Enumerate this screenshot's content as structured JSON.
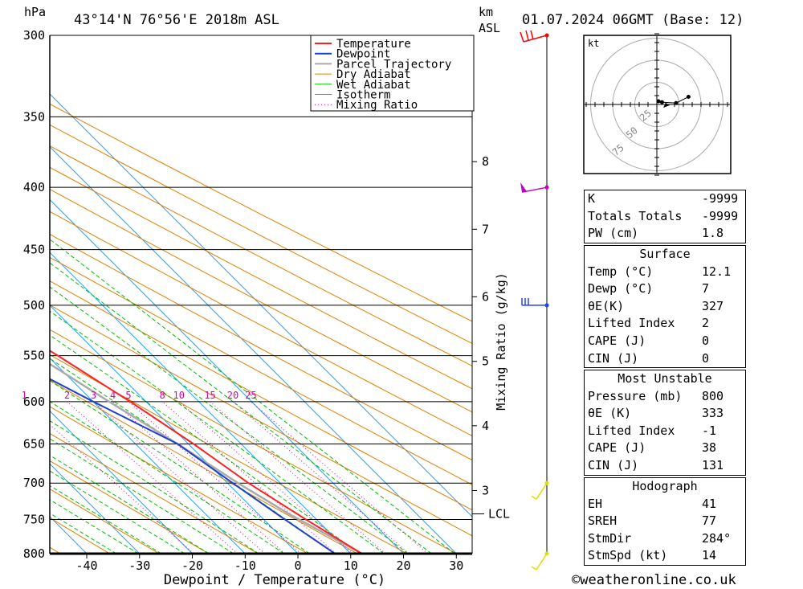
{
  "header": {
    "p_unit": "hPa",
    "location": "43°14'N  76°56'E  2018m  ASL",
    "km_label": "km",
    "asl_label": "ASL",
    "datetime": "01.07.2024  06GMT  (Base: 12)"
  },
  "footer": {
    "credit": "©weatheronline.co.uk"
  },
  "colors": {
    "temperature": "#ff2020",
    "dewpoint": "#2040d0",
    "parcel": "#aaaaaa",
    "dry_adiabat": "#e08000",
    "wet_adiabat": "#00c000",
    "isotherm": "#20a0ff",
    "mixing_ratio": "#e000a0",
    "wind": "#c000c0"
  },
  "chart_data": {
    "type": "skew-t",
    "xlabel": "Dewpoint / Temperature (°C)",
    "ylabel": "",
    "mixing_ratio_axis_label": "Mixing Ratio (g/kg)",
    "xlim": [
      -47,
      33
    ],
    "ylim": [
      800,
      300
    ],
    "x_ticks": [
      -40,
      -30,
      -20,
      -10,
      0,
      10,
      20,
      30
    ],
    "pressure_levels": [
      300,
      350,
      400,
      450,
      500,
      550,
      600,
      650,
      700,
      750,
      800
    ],
    "km_ticks": [
      {
        "km": 8,
        "p": 381
      },
      {
        "km": 7,
        "p": 433
      },
      {
        "km": 6,
        "p": 492
      },
      {
        "km": 5,
        "p": 556
      },
      {
        "km": 4,
        "p": 628
      },
      {
        "km": 3,
        "p": 710
      }
    ],
    "lcl": {
      "label": "LCL",
      "p": 742
    },
    "mixing_ratio_labels": [
      1,
      2,
      3,
      4,
      5,
      8,
      10,
      15,
      20,
      25
    ],
    "legend": {
      "placement": "top-right",
      "entries": [
        "Temperature",
        "Dewpoint",
        "Parcel Trajectory",
        "Dry Adiabat",
        "Wet Adiabat",
        "Isotherm",
        "Mixing Ratio"
      ]
    },
    "temperature": [
      {
        "p": 800,
        "t": 12.1
      },
      {
        "p": 750,
        "t": 8
      },
      {
        "p": 700,
        "t": 4
      },
      {
        "p": 650,
        "t": 1
      },
      {
        "p": 600,
        "t": -3
      },
      {
        "p": 550,
        "t": -8
      },
      {
        "p": 500,
        "t": -14
      },
      {
        "p": 450,
        "t": -19
      },
      {
        "p": 400,
        "t": -26
      },
      {
        "p": 350,
        "t": -35
      },
      {
        "p": 300,
        "t": -44
      }
    ],
    "dewpoint": [
      {
        "p": 800,
        "t": 7
      },
      {
        "p": 750,
        "t": 4
      },
      {
        "p": 700,
        "t": 1
      },
      {
        "p": 650,
        "t": -2
      },
      {
        "p": 600,
        "t": -10
      },
      {
        "p": 550,
        "t": -18
      },
      {
        "p": 500,
        "t": -24
      },
      {
        "p": 450,
        "t": -30
      },
      {
        "p": 400,
        "t": -37
      },
      {
        "p": 350,
        "t": -45
      },
      {
        "p": 330,
        "t": -50
      },
      {
        "p": 300,
        "t": -62
      }
    ],
    "parcel": [
      {
        "p": 800,
        "t": 12.1
      },
      {
        "p": 742,
        "t": 5.8
      },
      {
        "p": 700,
        "t": 2
      },
      {
        "p": 650,
        "t": -2
      },
      {
        "p": 600,
        "t": -7
      },
      {
        "p": 550,
        "t": -12
      },
      {
        "p": 500,
        "t": -18
      },
      {
        "p": 450,
        "t": -24
      },
      {
        "p": 400,
        "t": -31
      },
      {
        "p": 350,
        "t": -39
      },
      {
        "p": 300,
        "t": -49
      }
    ],
    "wind_barbs": [
      {
        "p": 300,
        "color": "#ff0000"
      },
      {
        "p": 400,
        "color": "#c000c0"
      },
      {
        "p": 500,
        "color": "#2040ff"
      },
      {
        "p": 700,
        "color": "#e0e000"
      },
      {
        "p": 800,
        "color": "#e0e000"
      }
    ]
  },
  "hodograph": {
    "unit": "kt",
    "ring_labels": [
      "25",
      "50",
      "75"
    ],
    "points": [
      [
        0,
        0
      ],
      [
        4,
        -1
      ],
      [
        20,
        -2
      ],
      [
        34,
        5
      ]
    ]
  },
  "indices": {
    "basic": [
      {
        "label": "K",
        "value": "-9999"
      },
      {
        "label": "Totals Totals",
        "value": "-9999"
      },
      {
        "label": "PW (cm)",
        "value": "1.8"
      }
    ],
    "surface": {
      "title": "Surface",
      "rows": [
        {
          "label": "Temp (°C)",
          "value": "12.1"
        },
        {
          "label": "Dewp (°C)",
          "value": "7"
        },
        {
          "label": "θE(K)",
          "value": "327"
        },
        {
          "label": "Lifted Index",
          "value": "2"
        },
        {
          "label": "CAPE (J)",
          "value": "0"
        },
        {
          "label": "CIN (J)",
          "value": "0"
        }
      ]
    },
    "most_unstable": {
      "title": "Most Unstable",
      "rows": [
        {
          "label": "Pressure (mb)",
          "value": "800"
        },
        {
          "label": "θE (K)",
          "value": "333"
        },
        {
          "label": "Lifted Index",
          "value": "-1"
        },
        {
          "label": "CAPE (J)",
          "value": "38"
        },
        {
          "label": "CIN (J)",
          "value": "131"
        }
      ]
    },
    "hodograph": {
      "title": "Hodograph",
      "rows": [
        {
          "label": "EH",
          "value": "41"
        },
        {
          "label": "SREH",
          "value": "77"
        },
        {
          "label": "StmDir",
          "value": "284°"
        },
        {
          "label": "StmSpd (kt)",
          "value": "14"
        }
      ]
    }
  }
}
